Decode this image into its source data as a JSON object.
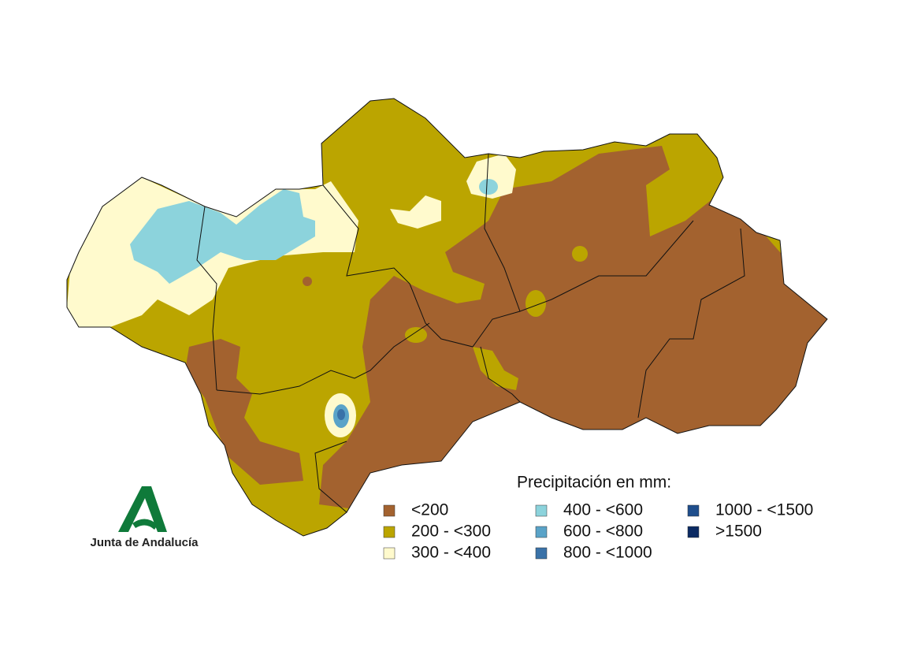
{
  "legend": {
    "title": "Precipitación en mm:",
    "items": [
      {
        "label": "<200",
        "color": "#a3622f"
      },
      {
        "label": "200 - <300",
        "color": "#bba500"
      },
      {
        "label": "300 - <400",
        "color": "#fffacd"
      },
      {
        "label": "400 - <600",
        "color": "#8cd3dc"
      },
      {
        "label": "600 - <800",
        "color": "#5aa3c8"
      },
      {
        "label": "800 - <1000",
        "color": "#3a72a8"
      },
      {
        "label": "1000 - <1500",
        "color": "#1f4e8c"
      },
      {
        "label": ">1500",
        "color": "#0b2a63"
      }
    ]
  },
  "logo": {
    "text": "Junta de Andalucía"
  }
}
